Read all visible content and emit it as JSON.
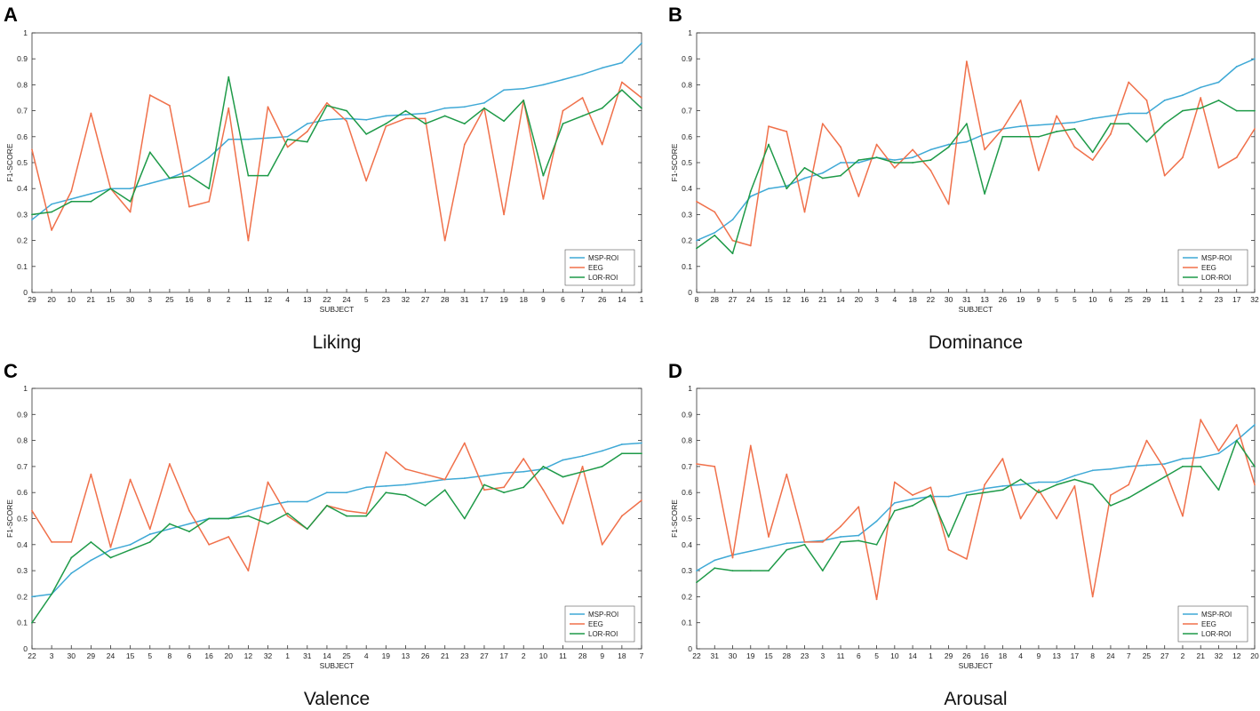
{
  "colors": {
    "msp": "#3fa9d6",
    "eeg": "#f0704a",
    "lor": "#1e9a48"
  },
  "legend_labels": [
    "MSP-ROI",
    "EEG",
    "LOR-ROI"
  ],
  "chart_data": [
    {
      "type": "line",
      "panel": "A",
      "caption": "Liking",
      "xlabel": "SUBJECT",
      "ylabel": "F1-SCORE",
      "ylim": [
        0,
        1
      ],
      "yticks": [
        "0",
        "0.1",
        "0.2",
        "0.3",
        "0.4",
        "0.5",
        "0.6",
        "0.7",
        "0.8",
        "0.9",
        "1"
      ],
      "legend_position": "bottom-right",
      "categories": [
        "29",
        "20",
        "10",
        "21",
        "15",
        "30",
        "3",
        "25",
        "16",
        "8",
        "2",
        "11",
        "12",
        "4",
        "13",
        "22",
        "24",
        "5",
        "23",
        "32",
        "27",
        "28",
        "31",
        "17",
        "19",
        "18",
        "9",
        "6",
        "7",
        "26",
        "14",
        "1"
      ],
      "series": [
        {
          "name": "MSP-ROI",
          "values": [
            0.28,
            0.34,
            0.36,
            0.38,
            0.4,
            0.4,
            0.42,
            0.44,
            0.47,
            0.52,
            0.59,
            0.59,
            0.595,
            0.6,
            0.65,
            0.665,
            0.67,
            0.665,
            0.68,
            0.685,
            0.69,
            0.71,
            0.715,
            0.73,
            0.78,
            0.785,
            0.8,
            0.82,
            0.84,
            0.865,
            0.885,
            0.96
          ]
        },
        {
          "name": "EEG",
          "values": [
            0.55,
            0.24,
            0.39,
            0.69,
            0.4,
            0.31,
            0.76,
            0.72,
            0.33,
            0.35,
            0.71,
            0.2,
            0.715,
            0.56,
            0.62,
            0.73,
            0.66,
            0.43,
            0.64,
            0.67,
            0.67,
            0.2,
            0.57,
            0.71,
            0.3,
            0.74,
            0.36,
            0.7,
            0.75,
            0.57,
            0.81,
            0.75
          ]
        },
        {
          "name": "LOR-ROI",
          "values": [
            0.3,
            0.31,
            0.35,
            0.35,
            0.4,
            0.35,
            0.54,
            0.44,
            0.45,
            0.4,
            0.83,
            0.45,
            0.45,
            0.59,
            0.58,
            0.72,
            0.7,
            0.61,
            0.65,
            0.7,
            0.65,
            0.68,
            0.65,
            0.71,
            0.66,
            0.74,
            0.45,
            0.65,
            0.68,
            0.71,
            0.78,
            0.71
          ]
        }
      ]
    },
    {
      "type": "line",
      "panel": "B",
      "caption": "Dominance",
      "xlabel": "SUBJECT",
      "ylabel": "F1-SCORE",
      "ylim": [
        0,
        1
      ],
      "yticks": [
        "0",
        "0.1",
        "0.2",
        "0.3",
        "0.4",
        "0.5",
        "0.6",
        "0.7",
        "0.8",
        "0.9",
        "1"
      ],
      "legend_position": "bottom-right",
      "categories": [
        "8",
        "28",
        "27",
        "24",
        "15",
        "12",
        "16",
        "21",
        "14",
        "20",
        "3",
        "4",
        "18",
        "22",
        "30",
        "31",
        "13",
        "26",
        "19",
        "9",
        "5",
        "5",
        "10",
        "6",
        "25",
        "29",
        "11",
        "1",
        "2",
        "23",
        "17",
        "32"
      ],
      "series": [
        {
          "name": "MSP-ROI",
          "values": [
            0.2,
            0.23,
            0.28,
            0.37,
            0.4,
            0.41,
            0.44,
            0.46,
            0.5,
            0.5,
            0.52,
            0.51,
            0.52,
            0.55,
            0.57,
            0.58,
            0.61,
            0.63,
            0.64,
            0.645,
            0.65,
            0.655,
            0.67,
            0.68,
            0.69,
            0.69,
            0.74,
            0.76,
            0.79,
            0.81,
            0.87,
            0.9
          ]
        },
        {
          "name": "EEG",
          "values": [
            0.35,
            0.31,
            0.2,
            0.18,
            0.64,
            0.62,
            0.31,
            0.65,
            0.56,
            0.37,
            0.57,
            0.48,
            0.55,
            0.47,
            0.34,
            0.89,
            0.55,
            0.63,
            0.74,
            0.47,
            0.68,
            0.56,
            0.51,
            0.61,
            0.81,
            0.74,
            0.45,
            0.52,
            0.75,
            0.48,
            0.52,
            0.63
          ]
        },
        {
          "name": "LOR-ROI",
          "values": [
            0.17,
            0.22,
            0.15,
            0.39,
            0.57,
            0.4,
            0.48,
            0.44,
            0.45,
            0.51,
            0.52,
            0.5,
            0.5,
            0.51,
            0.56,
            0.65,
            0.38,
            0.6,
            0.6,
            0.6,
            0.62,
            0.63,
            0.54,
            0.65,
            0.65,
            0.58,
            0.65,
            0.7,
            0.71,
            0.74,
            0.7,
            0.7
          ]
        }
      ]
    },
    {
      "type": "line",
      "panel": "C",
      "caption": "Valence",
      "xlabel": "SUBJECT",
      "ylabel": "F1-SCORE",
      "ylim": [
        0,
        1
      ],
      "yticks": [
        "0",
        "0.1",
        "0.2",
        "0.3",
        "0.4",
        "0.5",
        "0.6",
        "0.7",
        "0.8",
        "0.9",
        "1"
      ],
      "legend_position": "bottom-right",
      "categories": [
        "22",
        "3",
        "30",
        "29",
        "24",
        "15",
        "5",
        "8",
        "6",
        "16",
        "20",
        "12",
        "32",
        "1",
        "31",
        "14",
        "25",
        "4",
        "19",
        "13",
        "26",
        "21",
        "23",
        "27",
        "17",
        "2",
        "10",
        "11",
        "28",
        "9",
        "18",
        "7"
      ],
      "series": [
        {
          "name": "MSP-ROI",
          "values": [
            0.2,
            0.21,
            0.29,
            0.34,
            0.38,
            0.4,
            0.44,
            0.46,
            0.48,
            0.5,
            0.5,
            0.53,
            0.55,
            0.565,
            0.565,
            0.6,
            0.6,
            0.62,
            0.625,
            0.63,
            0.64,
            0.65,
            0.655,
            0.665,
            0.675,
            0.68,
            0.69,
            0.725,
            0.74,
            0.76,
            0.785,
            0.79
          ]
        },
        {
          "name": "EEG",
          "values": [
            0.53,
            0.41,
            0.41,
            0.67,
            0.39,
            0.65,
            0.46,
            0.71,
            0.53,
            0.4,
            0.43,
            0.3,
            0.64,
            0.51,
            0.46,
            0.55,
            0.53,
            0.52,
            0.755,
            0.69,
            0.67,
            0.65,
            0.79,
            0.61,
            0.62,
            0.73,
            0.61,
            0.48,
            0.7,
            0.4,
            0.51,
            0.57
          ]
        },
        {
          "name": "LOR-ROI",
          "values": [
            0.1,
            0.21,
            0.35,
            0.41,
            0.35,
            0.38,
            0.41,
            0.48,
            0.45,
            0.5,
            0.5,
            0.51,
            0.48,
            0.52,
            0.46,
            0.55,
            0.51,
            0.51,
            0.6,
            0.59,
            0.55,
            0.61,
            0.5,
            0.63,
            0.6,
            0.62,
            0.7,
            0.66,
            0.68,
            0.7,
            0.75,
            0.75
          ]
        }
      ]
    },
    {
      "type": "line",
      "panel": "D",
      "caption": "Arousal",
      "xlabel": "SUBJECT",
      "ylabel": "F1-SCORE",
      "ylim": [
        0,
        1
      ],
      "yticks": [
        "0",
        "0.1",
        "0.2",
        "0.3",
        "0.4",
        "0.5",
        "0.6",
        "0.7",
        "0.8",
        "0.9",
        "1"
      ],
      "legend_position": "bottom-right",
      "categories": [
        "22",
        "31",
        "30",
        "19",
        "15",
        "28",
        "23",
        "3",
        "11",
        "6",
        "5",
        "10",
        "14",
        "1",
        "29",
        "26",
        "16",
        "18",
        "4",
        "9",
        "13",
        "17",
        "8",
        "24",
        "7",
        "25",
        "27",
        "2",
        "21",
        "32",
        "12",
        "20"
      ],
      "series": [
        {
          "name": "MSP-ROI",
          "values": [
            0.3,
            0.34,
            0.36,
            0.375,
            0.39,
            0.405,
            0.41,
            0.415,
            0.43,
            0.435,
            0.49,
            0.56,
            0.575,
            0.585,
            0.585,
            0.6,
            0.615,
            0.625,
            0.63,
            0.64,
            0.64,
            0.665,
            0.685,
            0.69,
            0.7,
            0.705,
            0.71,
            0.73,
            0.735,
            0.75,
            0.8,
            0.86
          ]
        },
        {
          "name": "EEG",
          "values": [
            0.71,
            0.7,
            0.35,
            0.78,
            0.43,
            0.67,
            0.41,
            0.41,
            0.47,
            0.545,
            0.19,
            0.64,
            0.59,
            0.62,
            0.38,
            0.345,
            0.63,
            0.73,
            0.5,
            0.61,
            0.5,
            0.625,
            0.2,
            0.59,
            0.63,
            0.8,
            0.69,
            0.51,
            0.88,
            0.76,
            0.86,
            0.63
          ]
        },
        {
          "name": "LOR-ROI",
          "values": [
            0.255,
            0.31,
            0.3,
            0.3,
            0.3,
            0.38,
            0.4,
            0.3,
            0.41,
            0.415,
            0.4,
            0.53,
            0.55,
            0.59,
            0.43,
            0.59,
            0.6,
            0.61,
            0.65,
            0.6,
            0.63,
            0.65,
            0.63,
            0.55,
            0.58,
            0.62,
            0.66,
            0.7,
            0.7,
            0.61,
            0.8,
            0.7
          ]
        }
      ]
    }
  ]
}
